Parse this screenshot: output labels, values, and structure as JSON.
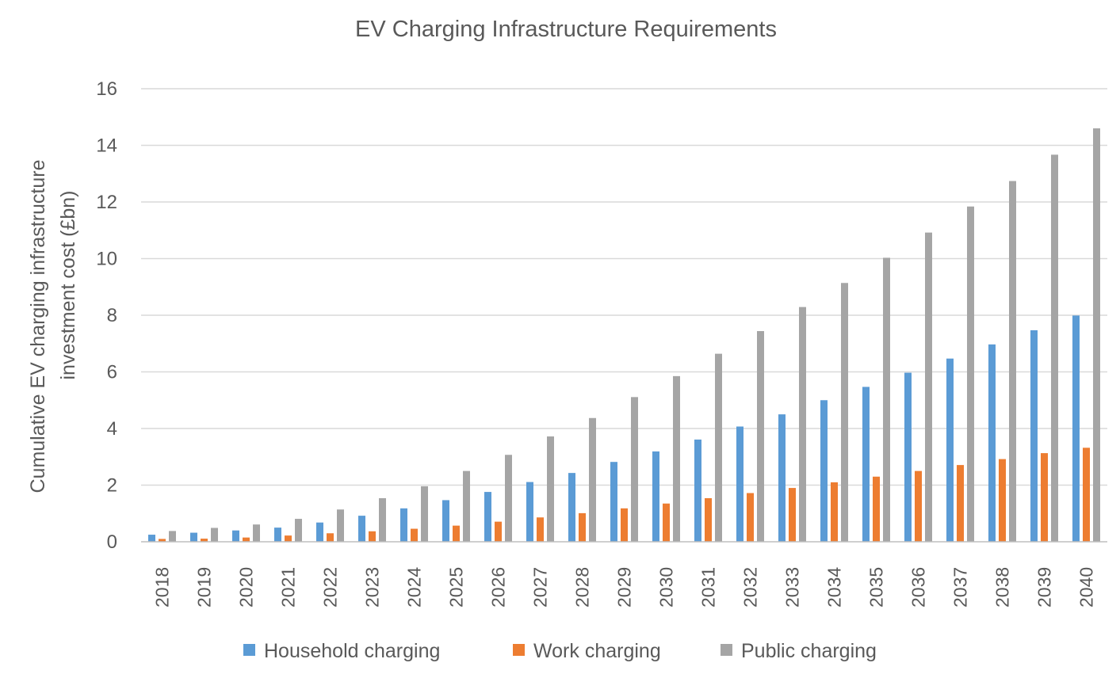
{
  "chart_data": {
    "type": "bar",
    "title": "EV Charging Infrastructure Requirements",
    "ylabel_lines": [
      "Cumulative  EV charging infrastructure",
      "investment cost (£bn)"
    ],
    "xlabel": "",
    "ylim": [
      0,
      16
    ],
    "yticks": [
      0,
      2,
      4,
      6,
      8,
      10,
      12,
      14,
      16
    ],
    "grid": true,
    "legend_position": "bottom",
    "categories": [
      "2018",
      "2019",
      "2020",
      "2021",
      "2022",
      "2023",
      "2024",
      "2025",
      "2026",
      "2027",
      "2028",
      "2029",
      "2030",
      "2031",
      "2032",
      "2033",
      "2034",
      "2035",
      "2036",
      "2037",
      "2038",
      "2039",
      "2040"
    ],
    "series": [
      {
        "name": "Household charging",
        "color": "#5b9bd5",
        "values": [
          0.25,
          0.32,
          0.4,
          0.5,
          0.68,
          0.92,
          1.18,
          1.47,
          1.76,
          2.11,
          2.43,
          2.82,
          3.19,
          3.61,
          4.07,
          4.5,
          5.0,
          5.47,
          5.97,
          6.47,
          6.97,
          7.47,
          7.99
        ]
      },
      {
        "name": "Work charging",
        "color": "#ed7d31",
        "values": [
          0.1,
          0.11,
          0.15,
          0.22,
          0.3,
          0.37,
          0.46,
          0.57,
          0.71,
          0.86,
          1.01,
          1.18,
          1.35,
          1.54,
          1.72,
          1.9,
          2.1,
          2.3,
          2.5,
          2.71,
          2.92,
          3.13,
          3.32
        ]
      },
      {
        "name": "Public charging",
        "color": "#a5a5a5",
        "values": [
          0.38,
          0.49,
          0.61,
          0.81,
          1.14,
          1.54,
          1.96,
          2.5,
          3.07,
          3.72,
          4.37,
          5.11,
          5.85,
          6.64,
          7.44,
          8.29,
          9.14,
          10.03,
          10.92,
          11.84,
          12.74,
          13.67,
          14.6
        ]
      }
    ]
  }
}
